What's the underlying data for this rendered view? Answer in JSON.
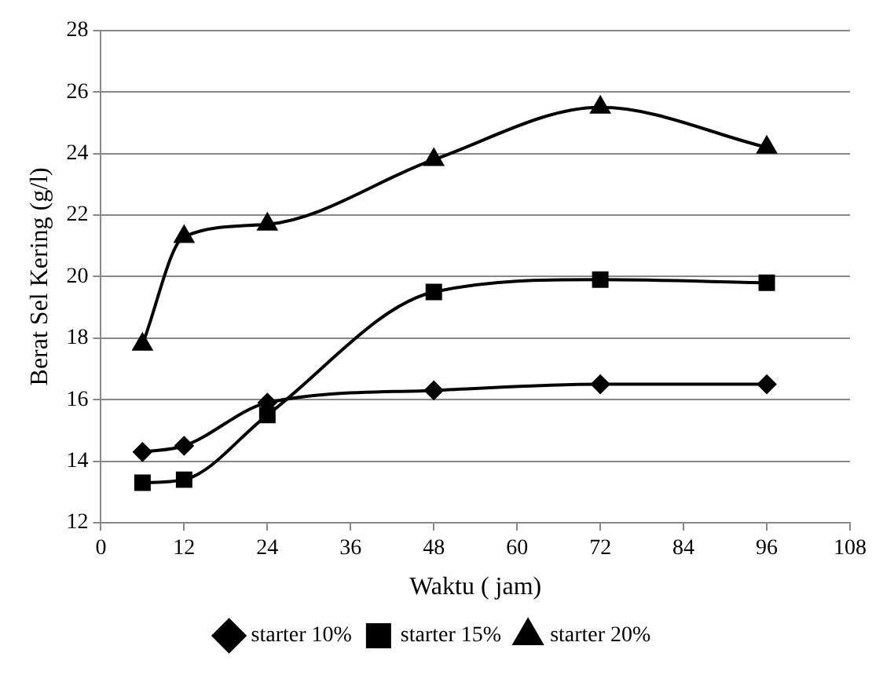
{
  "chart_data": {
    "type": "line",
    "xlabel": "Waktu ( jam)",
    "ylabel": "Berat Sel Kering (g/l)",
    "xlim": [
      0,
      108
    ],
    "xticks": [
      0,
      12,
      24,
      36,
      48,
      60,
      72,
      84,
      96,
      108
    ],
    "ylim": [
      12,
      28
    ],
    "yticks": [
      12,
      14,
      16,
      18,
      20,
      22,
      24,
      26,
      28
    ],
    "grid": "y",
    "legend": "bottom",
    "series": [
      {
        "name": "starter 10%",
        "color": "#000000",
        "marker": "diamond",
        "x": [
          6,
          12,
          24,
          48,
          72,
          96
        ],
        "values": [
          14.3,
          14.5,
          15.9,
          16.3,
          16.5,
          16.5
        ]
      },
      {
        "name": "starter 15%",
        "color": "#000000",
        "marker": "square",
        "x": [
          6,
          12,
          24,
          48,
          72,
          96
        ],
        "values": [
          13.3,
          13.4,
          15.5,
          19.5,
          19.9,
          19.8
        ]
      },
      {
        "name": "starter 20%",
        "color": "#000000",
        "marker": "triangle",
        "x": [
          6,
          12,
          24,
          48,
          72,
          96
        ],
        "values": [
          17.8,
          21.3,
          21.7,
          23.8,
          25.5,
          24.2
        ]
      }
    ]
  }
}
